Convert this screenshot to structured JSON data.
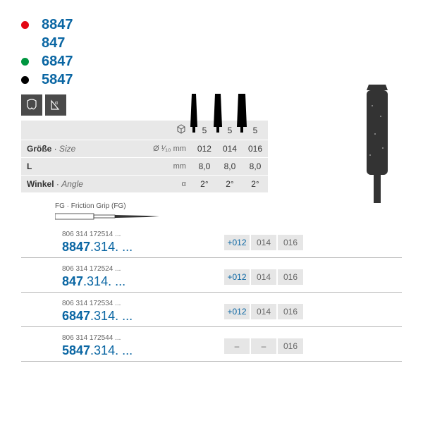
{
  "legend": [
    {
      "color": "#e30613",
      "label": "8847"
    },
    {
      "color": null,
      "label": "847"
    },
    {
      "color": "#009640",
      "label": "6847"
    },
    {
      "color": "#000000",
      "label": "5847"
    }
  ],
  "spec_rows": {
    "pack": {
      "values": [
        "5",
        "5",
        "5"
      ]
    },
    "size": {
      "de": "Größe",
      "en": "Size",
      "unit": "Ø ¹⁄₁₀ mm",
      "values": [
        "012",
        "014",
        "016"
      ]
    },
    "length": {
      "de": "L",
      "en": "",
      "unit": "mm",
      "values": [
        "8,0",
        "8,0",
        "8,0"
      ]
    },
    "angle": {
      "de": "Winkel",
      "en": "Angle",
      "unit": "α",
      "values": [
        "2°",
        "2°",
        "2°"
      ]
    }
  },
  "fg": {
    "label": "FG · Friction Grip (FG)"
  },
  "products": [
    {
      "color": "#e30613",
      "small": "806 314 172514 ...",
      "big_bold": "8847",
      "big_suffix": ".314. ...",
      "cells": [
        {
          "t": "+012",
          "plus": true
        },
        {
          "t": "014"
        },
        {
          "t": "016"
        }
      ]
    },
    {
      "color": null,
      "small": "806 314 172524 ...",
      "big_bold": "847",
      "big_suffix": ".314. ...",
      "cells": [
        {
          "t": "+012",
          "plus": true
        },
        {
          "t": "014"
        },
        {
          "t": "016"
        }
      ]
    },
    {
      "color": "#009640",
      "small": "806 314 172534 ...",
      "big_bold": "6847",
      "big_suffix": ".314. ...",
      "cells": [
        {
          "t": "+012",
          "plus": true
        },
        {
          "t": "014"
        },
        {
          "t": "016"
        }
      ]
    },
    {
      "color": "#000000",
      "small": "806 314 172544 ...",
      "big_bold": "5847",
      "big_suffix": ".314. ...",
      "cells": [
        {
          "t": "–"
        },
        {
          "t": "–"
        },
        {
          "t": "016"
        }
      ]
    }
  ],
  "colors": {
    "brand_blue": "#0a66a3",
    "cell_bg": "#e8e8e8",
    "gray_text": "#666666"
  }
}
